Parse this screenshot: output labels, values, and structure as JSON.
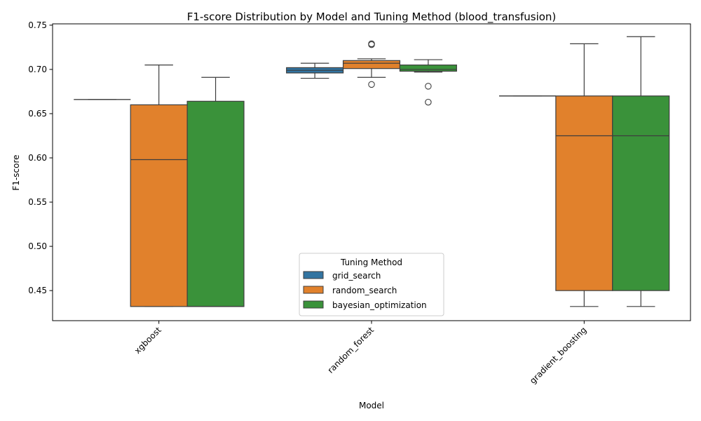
{
  "chart_data": {
    "type": "box",
    "title": "F1-score Distribution by Model and Tuning Method (blood_transfusion)",
    "xlabel": "Model",
    "ylabel": "F1-score",
    "ylim": [
      0.416,
      0.7515
    ],
    "yticks": [
      0.45,
      0.5,
      0.55,
      0.6,
      0.65,
      0.7,
      0.75
    ],
    "categories": [
      "xgboost",
      "random_forest",
      "gradient_boosting"
    ],
    "legend": {
      "title": "Tuning Method",
      "placement": "lower center"
    },
    "grid": false,
    "series": [
      {
        "name": "grid_search",
        "color": "#3274a1",
        "boxes": [
          {
            "q1": 0.666,
            "median": 0.666,
            "q3": 0.666,
            "whislo": 0.666,
            "whishi": 0.666,
            "fliers": []
          },
          {
            "q1": 0.696,
            "median": 0.699,
            "q3": 0.702,
            "whislo": 0.69,
            "whishi": 0.707,
            "fliers": []
          },
          {
            "q1": 0.67,
            "median": 0.67,
            "q3": 0.67,
            "whislo": 0.67,
            "whishi": 0.67,
            "fliers": []
          }
        ]
      },
      {
        "name": "random_search",
        "color": "#e1812c",
        "boxes": [
          {
            "q1": 0.432,
            "median": 0.598,
            "q3": 0.66,
            "whislo": 0.432,
            "whishi": 0.705,
            "fliers": []
          },
          {
            "q1": 0.701,
            "median": 0.707,
            "q3": 0.71,
            "whislo": 0.691,
            "whishi": 0.712,
            "fliers": [
              0.683,
              0.728,
              0.729
            ]
          },
          {
            "q1": 0.45,
            "median": 0.625,
            "q3": 0.67,
            "whislo": 0.432,
            "whishi": 0.729,
            "fliers": []
          }
        ]
      },
      {
        "name": "bayesian_optimization",
        "color": "#3a923a",
        "boxes": [
          {
            "q1": 0.432,
            "median": 0.432,
            "q3": 0.664,
            "whislo": 0.432,
            "whishi": 0.691,
            "fliers": []
          },
          {
            "q1": 0.698,
            "median": 0.7,
            "q3": 0.705,
            "whislo": 0.697,
            "whishi": 0.711,
            "fliers": [
              0.681,
              0.663
            ]
          },
          {
            "q1": 0.45,
            "median": 0.625,
            "q3": 0.67,
            "whislo": 0.432,
            "whishi": 0.737,
            "fliers": []
          }
        ]
      }
    ]
  }
}
